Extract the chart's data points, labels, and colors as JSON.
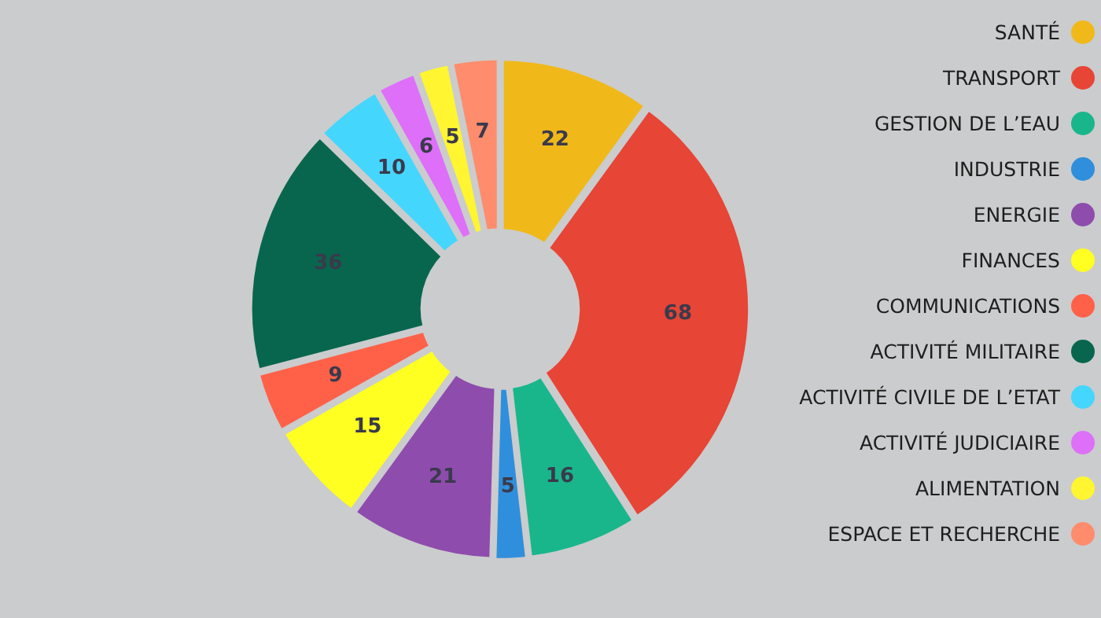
{
  "chart_data": {
    "type": "donut",
    "categories": [
      "SANTÉ",
      "TRANSPORT",
      "GESTION DE L’EAU",
      "INDUSTRIE",
      "ENERGIE",
      "FINANCES",
      "COMMUNICATIONS",
      "ACTIVITÉ MILITAIRE",
      "ACTIVITÉ CIVILE DE L’ETAT",
      "ACTIVITÉ JUDICIAIRE",
      "ALIMENTATION",
      "ESPACE ET RECHERCHE"
    ],
    "values": [
      22,
      68,
      16,
      5,
      21,
      15,
      9,
      36,
      10,
      6,
      5,
      7
    ],
    "colors": [
      "#f0b919",
      "#e74535",
      "#19b68c",
      "#2f8fdc",
      "#8e4cad",
      "#ffff22",
      "#ff6148",
      "#08664e",
      "#45d6fd",
      "#dd6ff9",
      "#fff530",
      "#ff8c6c"
    ],
    "data_labels": true,
    "legend": "right"
  }
}
